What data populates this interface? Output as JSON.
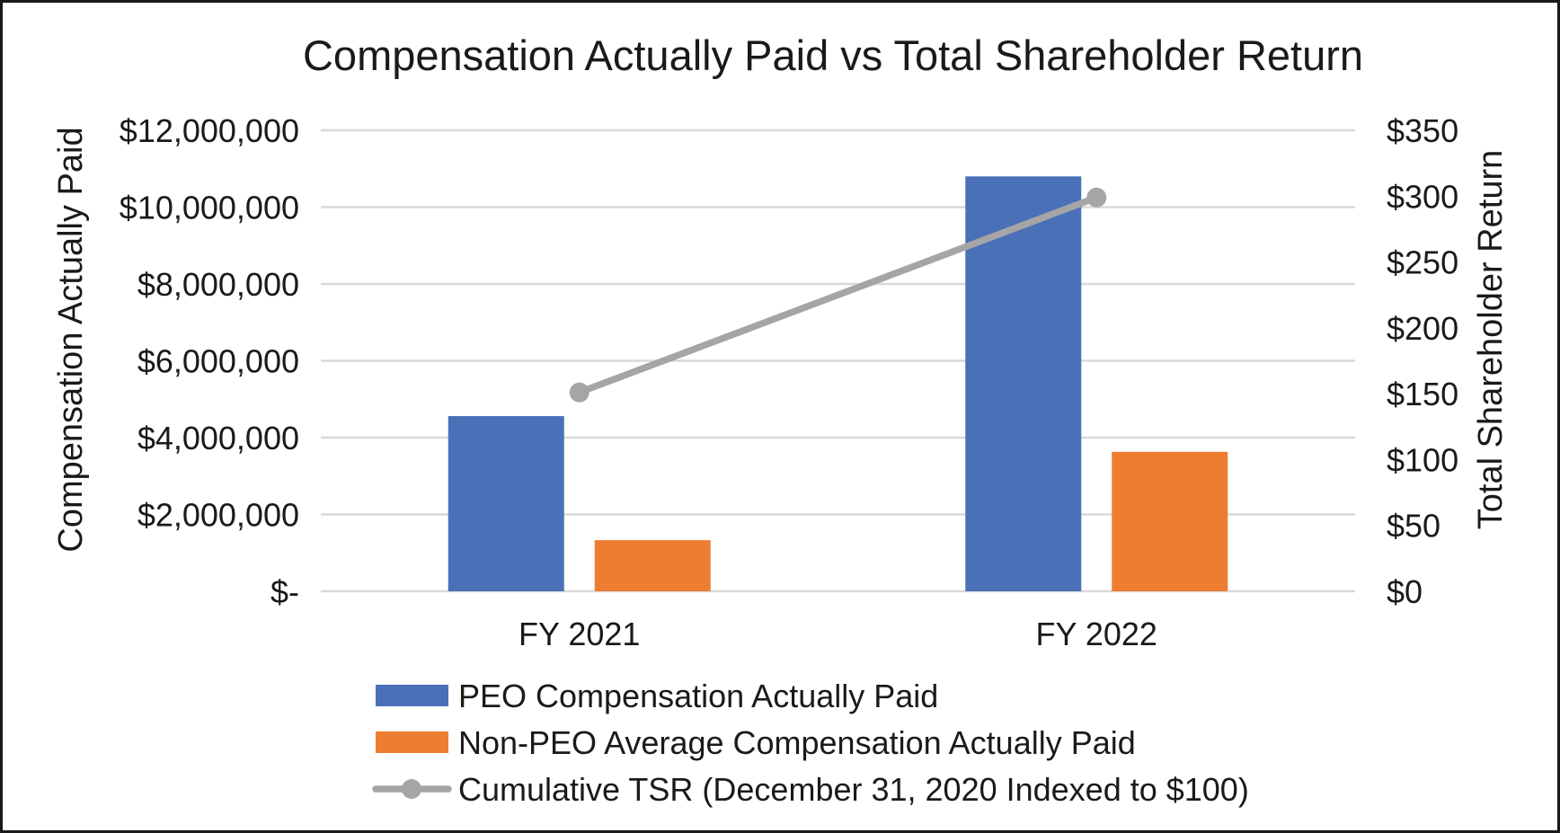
{
  "chart_data": {
    "type": "bar+line",
    "title": "Compensation Actually Paid vs Total Shareholder Return",
    "categories": [
      "FY 2021",
      "FY 2022"
    ],
    "left_axis": {
      "label": "Compensation Actually Paid",
      "min": 0,
      "max": 12000000,
      "ticks": [
        0,
        2000000,
        4000000,
        6000000,
        8000000,
        10000000,
        12000000
      ],
      "tick_labels": [
        "$-",
        "$2,000,000",
        "$4,000,000",
        "$6,000,000",
        "$8,000,000",
        "$10,000,000",
        "$12,000,000"
      ]
    },
    "right_axis": {
      "label": "Total Shareholder Return",
      "min": 0,
      "max": 350,
      "ticks": [
        0,
        50,
        100,
        150,
        200,
        250,
        300,
        350
      ],
      "tick_labels": [
        "$0",
        "$50",
        "$100",
        "$150",
        "$200",
        "$250",
        "$300",
        "$350"
      ]
    },
    "series": [
      {
        "name": "PEO Compensation Actually Paid",
        "type": "bar",
        "axis": "left",
        "color": "#4A70B8",
        "values": [
          4560000,
          10800000
        ]
      },
      {
        "name": "Non-PEO Average Compensation Actually Paid",
        "type": "bar",
        "axis": "left",
        "color": "#ED7D31",
        "values": [
          1330000,
          3630000
        ]
      },
      {
        "name": "Cumulative TSR (December 31, 2020 Indexed to $100)",
        "type": "line",
        "axis": "right",
        "color": "#A5A5A5",
        "values": [
          151,
          299
        ]
      }
    ],
    "grid": true,
    "legend_position": "bottom"
  }
}
